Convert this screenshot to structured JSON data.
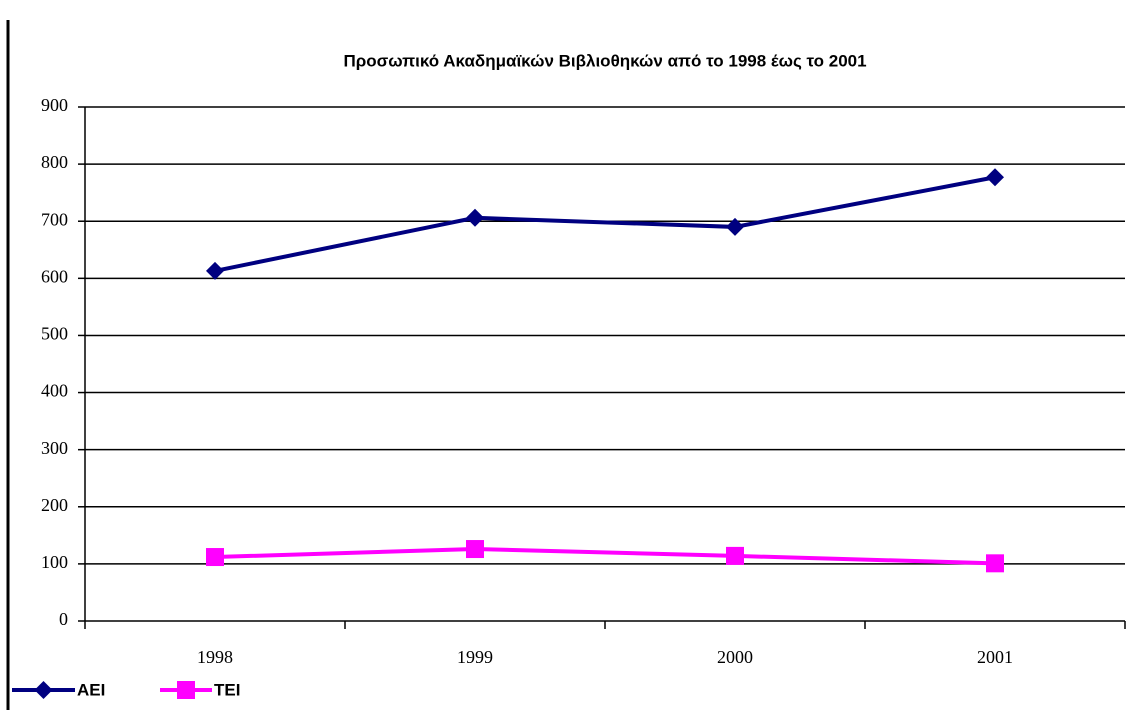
{
  "chart_data": {
    "type": "line",
    "title": "Προσωπικό Ακαδημαϊκών Βιβλιοθηκών από το 1998 έως το 2001",
    "categories": [
      "1998",
      "1999",
      "2000",
      "2001"
    ],
    "series": [
      {
        "name": "AEI",
        "color": "#000080",
        "values": [
          613,
          706,
          690,
          777
        ]
      },
      {
        "name": "TEI",
        "color": "#ff00ff",
        "values": [
          112,
          126,
          114,
          101
        ]
      }
    ],
    "ylim": [
      0,
      900
    ],
    "yticks": [
      0,
      100,
      200,
      300,
      400,
      500,
      600,
      700,
      800,
      900
    ],
    "grid": true,
    "legend": "bottom-left"
  }
}
